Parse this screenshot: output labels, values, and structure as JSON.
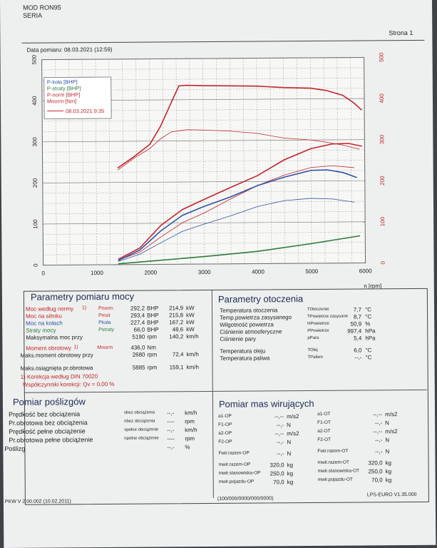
{
  "header": {
    "line1": "MOD RON95",
    "line2": "SERIA",
    "page": "Strona 1",
    "date": "Data pomiaru: 08.03.2021 (12:59)"
  },
  "colors": {
    "red": "#c0262a",
    "blue": "#2e53a6",
    "green": "#2e7a3a",
    "grid": "#9a9a9a",
    "navy": "#1d2a52"
  },
  "chart_data": {
    "type": "line",
    "xlabel": "n [rpm]",
    "xlim": [
      0,
      6000
    ],
    "xticks": [
      0,
      1000,
      2000,
      3000,
      4000,
      5000,
      6000
    ],
    "ylim_left": [
      0,
      500
    ],
    "yticks_left": [
      0,
      100,
      200,
      300,
      400,
      500
    ],
    "ylim_right": [
      0,
      500
    ],
    "yticks_right": [
      0,
      100,
      200,
      300,
      400,
      500
    ],
    "grid": true,
    "legend_position": "top-left",
    "legend": [
      "P-koła [BHP]",
      "P-straty [BHP]",
      "P-norm [BHP]",
      "Mnorm [Nm]"
    ],
    "legend_run": "08.03.2021 9:35",
    "series": [
      {
        "name": "Mnorm [Nm]",
        "axis": "right",
        "color": "#c0262a",
        "x": [
          1400,
          1700,
          2000,
          2200,
          2400,
          2550,
          2700,
          3000,
          3500,
          4000,
          4500,
          5000,
          5300,
          5600,
          5800,
          5950
        ],
        "y": [
          235,
          262,
          292,
          335,
          392,
          434,
          435,
          434,
          433,
          432,
          428,
          426,
          420,
          408,
          390,
          372
        ]
      },
      {
        "name": "Mnorm [Nm] (thin)",
        "axis": "right",
        "color": "#c0262a",
        "x": [
          1400,
          1700,
          2000,
          2200,
          2400,
          2700,
          3000,
          3500,
          4000,
          4500,
          5000,
          5300,
          5600,
          5800,
          5900
        ],
        "y": [
          230,
          258,
          282,
          305,
          322,
          327,
          326,
          323,
          317,
          305,
          300,
          294,
          287,
          280,
          277
        ]
      },
      {
        "name": "P-norm [BHP]",
        "axis": "left",
        "color": "#c0262a",
        "x": [
          1400,
          1800,
          2200,
          2600,
          3000,
          3500,
          4000,
          4500,
          5000,
          5400,
          5700,
          5950
        ],
        "y": [
          13,
          40,
          95,
          133,
          157,
          186,
          214,
          252,
          279,
          290,
          291,
          284
        ]
      },
      {
        "name": "P-norm [BHP] (thin)",
        "axis": "left",
        "color": "#c0262a",
        "x": [
          1400,
          1800,
          2200,
          2600,
          3000,
          3500,
          4000,
          4500,
          5000,
          5400,
          5800
        ],
        "y": [
          11,
          30,
          67,
          101,
          124,
          158,
          190,
          215,
          233,
          237,
          232
        ]
      },
      {
        "name": "P-koła [BHP]",
        "axis": "left",
        "color": "#2e53a6",
        "x": [
          1400,
          1800,
          2200,
          2600,
          3000,
          3500,
          4000,
          4500,
          5000,
          5300,
          5600,
          5850
        ],
        "y": [
          10,
          35,
          82,
          119,
          140,
          163,
          190,
          210,
          226,
          227,
          220,
          208
        ]
      },
      {
        "name": "P-koła [BHP] (thin)",
        "axis": "left",
        "color": "#2e53a6",
        "x": [
          1400,
          1800,
          2200,
          2600,
          3000,
          3500,
          4000,
          4500,
          5000,
          5400,
          5800
        ],
        "y": [
          8,
          25,
          53,
          80,
          97,
          117,
          139,
          153,
          158,
          156,
          148
        ]
      },
      {
        "name": "P-straty [BHP]",
        "axis": "left",
        "color": "#2e7a3a",
        "x": [
          1400,
          2000,
          3000,
          4000,
          5000,
          5900
        ],
        "y": [
          2,
          8,
          18,
          30,
          48,
          66
        ]
      }
    ]
  },
  "sections": {
    "moc": {
      "title": "Parametry pomiaru mocy",
      "rows": [
        {
          "label": "Moc według normy",
          "note": "1)",
          "sym": "Pnorm",
          "v1": "292,2",
          "u1": "BHP",
          "v2": "214,9",
          "u2": "kW"
        },
        {
          "label": "Moc na silniku",
          "note": "",
          "sym": "Pmot",
          "v1": "293,4",
          "u1": "BHP",
          "v2": "215,8",
          "u2": "kW"
        },
        {
          "label": "Moc na kołach",
          "note": "",
          "sym": "Pkoła",
          "v1": "227,4",
          "u1": "BHP",
          "v2": "167,2",
          "u2": "kW"
        },
        {
          "label": "Straty mocy",
          "note": "",
          "sym": "Pstraty",
          "v1": "66,0",
          "u1": "BHP",
          "v2": "48,6",
          "u2": "kW"
        },
        {
          "label": "Maksymalna moc przy",
          "note": "",
          "sym": "",
          "v1": "5190",
          "u1": "rpm",
          "v2": "140,2",
          "u2": "km/h"
        }
      ],
      "moment": {
        "label": "Moment obrotowy",
        "note": "1)",
        "sym": "Mnorm",
        "v1": "436,0",
        "u1": "Nm"
      },
      "moment_at": {
        "label": "Maks.moment obrotowy przy",
        "v1": "2680",
        "u1": "rpm",
        "v2": "72,4",
        "u2": "km/h"
      },
      "max_rpm": {
        "label": "Maks.osiągnięta pr.obrotowa",
        "v1": "5885",
        "u1": "rpm",
        "v2": "159,1",
        "u2": "km/h"
      },
      "korekcja": "1) Korekcja według DIN 70020",
      "wspolczynniki": "Współczynniki korekcji: Qv = 0,00 %"
    },
    "otoczenie": {
      "title": "Parametry otoczenia",
      "rows": [
        {
          "label": "Temperatura otoczenia",
          "sym": "TOtoczenie",
          "val": "7,7",
          "unit": "°C"
        },
        {
          "label": "Temp.powietrza zasysanego",
          "sym": "TPowietrze zasysane",
          "val": "8,7",
          "unit": "°C"
        },
        {
          "label": "Wilgotność powietrza",
          "sym": "HPowietrze",
          "val": "50,9",
          "unit": "%"
        },
        {
          "label": "Ciśnienie atmosferyczne",
          "sym": "PPowietrze",
          "val": "997,4",
          "unit": "hPa"
        },
        {
          "label": "Ciśnienie pary",
          "sym": "pPara",
          "val": "5,4",
          "unit": "hPa"
        },
        {
          "label": "Temperatura oleju",
          "sym": "TOlej",
          "val": "6,0",
          "unit": "°C"
        },
        {
          "label": "Temperatura paliwa",
          "sym": "TPaliwo",
          "val": "--,-",
          "unit": "°C"
        }
      ]
    },
    "poslizg": {
      "title": "Pomiar poślizgów",
      "rows": [
        {
          "label": "Prędkość bez obciążenia",
          "sym": "vbez obciążenia",
          "val": "--,-",
          "unit": "km/h"
        },
        {
          "label": "Pr.obrotowa bez obciążenia",
          "sym": "nbez obciążenia",
          "val": "----",
          "unit": "rpm"
        },
        {
          "label": "Prędkość pełne obciążenie",
          "sym": "vpełne obciążenie",
          "val": "--,-",
          "unit": "km/h"
        },
        {
          "label": "Pr.obrotowa pełne obciążenie",
          "sym": "npełne obciążenie",
          "val": "----",
          "unit": "rpm"
        },
        {
          "label": "Poślizg",
          "sym": "",
          "val": "--,-",
          "unit": "%"
        }
      ]
    },
    "masy": {
      "title": "Pomiar mas wirujących",
      "left": [
        {
          "sym": "a1-OP",
          "val": "--,--",
          "unit": "m/s2"
        },
        {
          "sym": "F1-OP",
          "val": "--,-",
          "unit": "N"
        },
        {
          "sym": "a2-OP",
          "val": "--,--",
          "unit": "m/s2"
        },
        {
          "sym": "F2-OP",
          "val": "--,-",
          "unit": "N"
        },
        {
          "sym": "Fwir.razem-OP",
          "val": "--,-",
          "unit": "N"
        },
        {
          "sym": "mwir.razem-OP",
          "val": "320,0",
          "unit": "kg"
        },
        {
          "sym": "mwir.stanowiska-OP",
          "val": "250,0",
          "unit": "kg"
        },
        {
          "sym": "mwir.pojazdu-OP",
          "val": "70,0",
          "unit": "kg"
        }
      ],
      "right": [
        {
          "sym": "a1-OT",
          "val": "--,--",
          "unit": "m/s2"
        },
        {
          "sym": "F1-OT",
          "val": "--,-",
          "unit": "N"
        },
        {
          "sym": "a2-OT",
          "val": "--,--",
          "unit": "m/s2"
        },
        {
          "sym": "F2-OT",
          "val": "--,-",
          "unit": "N"
        },
        {
          "sym": "Fwir.razem-OT",
          "val": "--,-",
          "unit": "N"
        },
        {
          "sym": "mwir.razem-OT",
          "val": "320,0",
          "unit": "kg"
        },
        {
          "sym": "mwir.stanowiska-OT",
          "val": "250,0",
          "unit": "kg"
        },
        {
          "sym": "mwir.pojazdu-OT",
          "val": "70,0",
          "unit": "kg"
        }
      ]
    }
  },
  "footer": {
    "left": "PKW V 2.00.002 (10.02.2011)",
    "mid": "(100/000/0000/000/0000)",
    "right": "LPS-EURO V1.35.000"
  }
}
